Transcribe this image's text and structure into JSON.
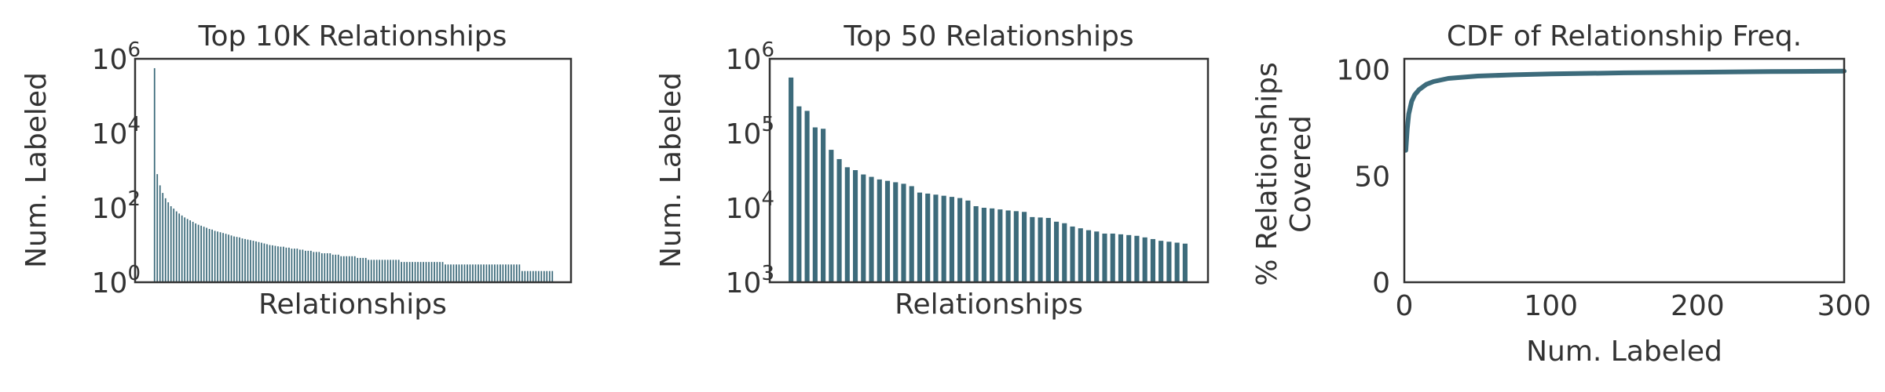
{
  "colors": {
    "series": "#3d6b7b",
    "axes": "#333333",
    "background": "#ffffff"
  },
  "chart_data": [
    {
      "type": "bar",
      "title": "Top 10K Relationships",
      "xlabel": "Relationships",
      "ylabel": "Num. Labeled",
      "yscale": "log",
      "ylim": [
        1,
        1000000
      ],
      "yticks": [
        {
          "value": 1,
          "base": "10",
          "exp": "0"
        },
        {
          "value": 100,
          "base": "10",
          "exp": "2"
        },
        {
          "value": 10000,
          "base": "10",
          "exp": "4"
        },
        {
          "value": 1000000,
          "base": "10",
          "exp": "6"
        }
      ],
      "grid": false,
      "values": [
        560000,
        800,
        400,
        250,
        180,
        140,
        110,
        95,
        80,
        70,
        62,
        55,
        50,
        46,
        42,
        38,
        35,
        33,
        31,
        29,
        27,
        26,
        24,
        23,
        22,
        21,
        20,
        19,
        18,
        17,
        16.5,
        16,
        15,
        14.5,
        14,
        13.5,
        13,
        12.5,
        12,
        11.5,
        11,
        10.5,
        10,
        9.8,
        9.5,
        9.2,
        9,
        9,
        8.5,
        8.5,
        8,
        8,
        8,
        7.5,
        7.5,
        7,
        7,
        7,
        6.5,
        6.5,
        6.5,
        6,
        6,
        6,
        6,
        5.5,
        5.5,
        5.5,
        5,
        5,
        5,
        5,
        5,
        5,
        4.5,
        4.5,
        4.5,
        4.5,
        4,
        4,
        4,
        4,
        4,
        4,
        4,
        4,
        4,
        4,
        4,
        4,
        3.5,
        3.5,
        3.5,
        3.5,
        3.5,
        3.5,
        3.5,
        3.5,
        3.5,
        3.5,
        3.5,
        3.5,
        3.5,
        3.5,
        3.5,
        3.5,
        3,
        3,
        3,
        3,
        3,
        3,
        3,
        3,
        3,
        3,
        3,
        3,
        3,
        3,
        3,
        3,
        3,
        3,
        3,
        3,
        3,
        3,
        3,
        3,
        3,
        3,
        3,
        3,
        2,
        2,
        2,
        2,
        2,
        2,
        2,
        2,
        2,
        2,
        2,
        2
      ]
    },
    {
      "type": "bar",
      "title": "Top 50 Relationships",
      "xlabel": "Relationships",
      "ylabel": "Num. Labeled",
      "yscale": "log",
      "ylim": [
        1000,
        1000000
      ],
      "yticks": [
        {
          "value": 1000,
          "base": "10",
          "exp": "3"
        },
        {
          "value": 10000,
          "base": "10",
          "exp": "4"
        },
        {
          "value": 100000,
          "base": "10",
          "exp": "5"
        },
        {
          "value": 1000000,
          "base": "10",
          "exp": "6"
        }
      ],
      "grid": false,
      "values": [
        560000,
        230000,
        200000,
        120000,
        115000,
        60000,
        45000,
        35000,
        32000,
        28000,
        26000,
        24000,
        23000,
        22000,
        21000,
        19500,
        16000,
        15500,
        15000,
        14500,
        14000,
        13500,
        12500,
        10500,
        10000,
        9800,
        9500,
        9200,
        9000,
        8800,
        7500,
        7400,
        7300,
        6500,
        6200,
        5600,
        5300,
        5000,
        4800,
        4500,
        4500,
        4400,
        4300,
        4200,
        4000,
        3800,
        3600,
        3500,
        3400,
        3300
      ]
    },
    {
      "type": "line",
      "title": "CDF of Relationship Freq.",
      "xlabel": "Num. Labeled",
      "ylabel": [
        "% Relationships",
        "Covered"
      ],
      "xlim": [
        0,
        300
      ],
      "ylim": [
        0,
        105
      ],
      "xticks": [
        0,
        100,
        200,
        300
      ],
      "yticks": [
        0,
        50,
        100
      ],
      "grid": false,
      "x": [
        1,
        2,
        3,
        5,
        7,
        10,
        15,
        20,
        30,
        50,
        75,
        100,
        150,
        200,
        250,
        300
      ],
      "y": [
        62,
        72,
        79,
        85,
        88,
        90.5,
        93,
        94.3,
        95.8,
        96.9,
        97.5,
        97.9,
        98.4,
        98.7,
        99,
        99.2
      ]
    }
  ]
}
